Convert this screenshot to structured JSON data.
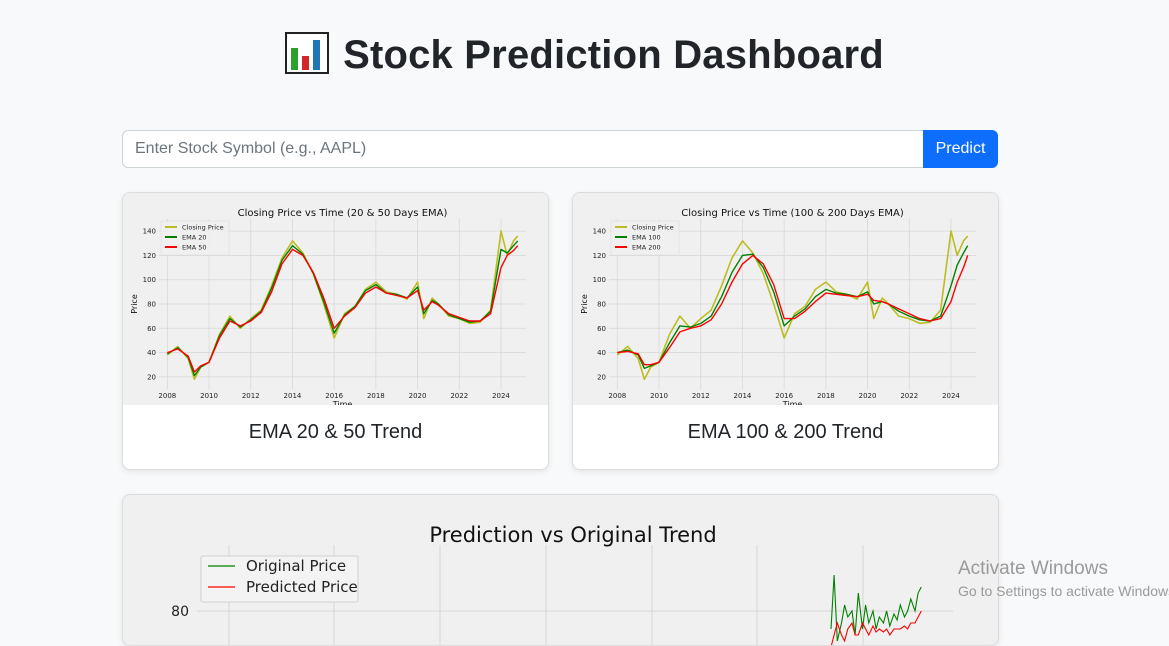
{
  "page": {
    "title": "Stock Prediction Dashboard",
    "title_icon": "bar-chart-emoji-icon"
  },
  "search": {
    "placeholder": "Enter Stock Symbol (e.g., AAPL)",
    "value": "",
    "button_label": "Predict"
  },
  "colors": {
    "accent": "#0d6efd",
    "closing": "#bcbd22",
    "ema_short": "#008000",
    "ema_long": "#ff0000",
    "original": "#008000",
    "predicted": "#ff0000"
  },
  "cards": [
    {
      "caption": "EMA 20 & 50 Trend"
    },
    {
      "caption": "EMA 100 & 200 Trend"
    }
  ],
  "chart_data": [
    {
      "type": "line",
      "title": "Closing Price vs Time (20 & 50 Days EMA)",
      "xlabel": "Time",
      "ylabel": "Price",
      "xlim": [
        2007.6,
        2025.2
      ],
      "ylim": [
        10,
        150
      ],
      "xticks": [
        "2008",
        "2010",
        "2012",
        "2014",
        "2016",
        "2018",
        "2020",
        "2022",
        "2024"
      ],
      "yticks": [
        "20",
        "40",
        "60",
        "80",
        "100",
        "120",
        "140"
      ],
      "legend": [
        "Closing Price",
        "EMA 20",
        "EMA 50"
      ],
      "legend_position": "upper-left",
      "x": [
        2008,
        2008.5,
        2009,
        2009.3,
        2009.6,
        2010,
        2010.5,
        2011,
        2011.5,
        2012,
        2012.5,
        2013,
        2013.5,
        2014,
        2014.5,
        2015,
        2015.5,
        2016,
        2016.5,
        2017,
        2017.5,
        2018,
        2018.5,
        2019,
        2019.5,
        2020,
        2020.3,
        2020.7,
        2021,
        2021.5,
        2022,
        2022.5,
        2023,
        2023.5,
        2024,
        2024.3,
        2024.6,
        2024.8
      ],
      "series": [
        {
          "name": "Closing Price",
          "values": [
            38,
            45,
            35,
            18,
            28,
            32,
            55,
            70,
            60,
            68,
            75,
            95,
            118,
            132,
            122,
            105,
            80,
            52,
            72,
            78,
            92,
            98,
            90,
            88,
            84,
            98,
            68,
            85,
            80,
            70,
            68,
            64,
            65,
            75,
            140,
            120,
            132,
            136
          ]
        },
        {
          "name": "EMA 20",
          "values": [
            39,
            44,
            36,
            21,
            28,
            32,
            54,
            68,
            61,
            67,
            74,
            93,
            116,
            128,
            121,
            105,
            82,
            56,
            71,
            78,
            91,
            96,
            89,
            88,
            85,
            94,
            72,
            83,
            80,
            71,
            68,
            65,
            66,
            74,
            125,
            122,
            128,
            132
          ]
        },
        {
          "name": "EMA 50",
          "values": [
            40,
            43,
            37,
            24,
            29,
            32,
            52,
            66,
            62,
            66,
            73,
            90,
            113,
            125,
            120,
            106,
            85,
            60,
            70,
            77,
            89,
            94,
            89,
            87,
            85,
            91,
            75,
            82,
            79,
            72,
            69,
            66,
            66,
            72,
            110,
            120,
            124,
            128
          ]
        }
      ]
    },
    {
      "type": "line",
      "title": "Closing Price vs Time (100 & 200 Days EMA)",
      "xlabel": "Time",
      "ylabel": "Price",
      "xlim": [
        2007.6,
        2025.2
      ],
      "ylim": [
        10,
        150
      ],
      "xticks": [
        "2008",
        "2010",
        "2012",
        "2014",
        "2016",
        "2018",
        "2020",
        "2022",
        "2024"
      ],
      "yticks": [
        "20",
        "40",
        "60",
        "80",
        "100",
        "120",
        "140"
      ],
      "legend": [
        "Closing Price",
        "EMA 100",
        "EMA 200"
      ],
      "legend_position": "upper-left",
      "x": [
        2008,
        2008.5,
        2009,
        2009.3,
        2009.6,
        2010,
        2010.5,
        2011,
        2011.5,
        2012,
        2012.5,
        2013,
        2013.5,
        2014,
        2014.5,
        2015,
        2015.5,
        2016,
        2016.5,
        2017,
        2017.5,
        2018,
        2018.5,
        2019,
        2019.5,
        2020,
        2020.3,
        2020.7,
        2021,
        2021.5,
        2022,
        2022.5,
        2023,
        2023.5,
        2024,
        2024.3,
        2024.6,
        2024.8
      ],
      "series": [
        {
          "name": "Closing Price",
          "values": [
            38,
            45,
            35,
            18,
            28,
            32,
            55,
            70,
            60,
            68,
            75,
            95,
            118,
            132,
            122,
            105,
            80,
            52,
            72,
            78,
            92,
            98,
            90,
            88,
            84,
            98,
            68,
            85,
            80,
            70,
            68,
            64,
            65,
            75,
            140,
            120,
            132,
            136
          ]
        },
        {
          "name": "EMA 100",
          "values": [
            40,
            42,
            38,
            27,
            29,
            32,
            48,
            62,
            61,
            64,
            70,
            86,
            106,
            120,
            121,
            110,
            90,
            62,
            70,
            76,
            86,
            92,
            89,
            88,
            86,
            90,
            80,
            82,
            80,
            74,
            70,
            67,
            66,
            70,
            95,
            112,
            122,
            128
          ]
        },
        {
          "name": "EMA 200",
          "values": [
            40,
            41,
            39,
            30,
            30,
            32,
            44,
            57,
            60,
            62,
            67,
            80,
            98,
            113,
            120,
            113,
            96,
            68,
            68,
            74,
            82,
            89,
            88,
            87,
            86,
            88,
            83,
            82,
            80,
            76,
            72,
            68,
            66,
            68,
            82,
            98,
            110,
            120
          ]
        }
      ]
    },
    {
      "type": "line",
      "title": "Prediction vs Original Trend",
      "xlabel": "",
      "ylabel": "",
      "ylim": [
        60,
        100
      ],
      "xlim": [
        0,
        1000
      ],
      "yticks": [
        "80"
      ],
      "legend": [
        "Original Price",
        "Predicted Price"
      ],
      "legend_position": "upper-left",
      "x": [
        830,
        833,
        836,
        840,
        843,
        846,
        850,
        853,
        856,
        860,
        863,
        866,
        870,
        873,
        876,
        880,
        883,
        886,
        890,
        893,
        896,
        900,
        903,
        906,
        910,
        913,
        916
      ],
      "series": [
        {
          "name": "Original Price",
          "values": [
            74,
            92,
            70,
            76,
            82,
            78,
            80,
            72,
            86,
            74,
            82,
            76,
            80,
            74,
            78,
            76,
            80,
            75,
            79,
            77,
            82,
            78,
            80,
            84,
            80,
            86,
            88
          ]
        },
        {
          "name": "Predicted Price",
          "values": [
            68,
            72,
            76,
            72,
            70,
            74,
            76,
            72,
            72,
            76,
            74,
            72,
            75,
            73,
            74,
            73,
            74,
            72,
            74,
            74,
            74,
            75,
            74,
            76,
            76,
            78,
            80
          ]
        }
      ]
    }
  ],
  "watermark": {
    "line1": "Activate Windows",
    "line2": "Go to Settings to activate Windows."
  }
}
